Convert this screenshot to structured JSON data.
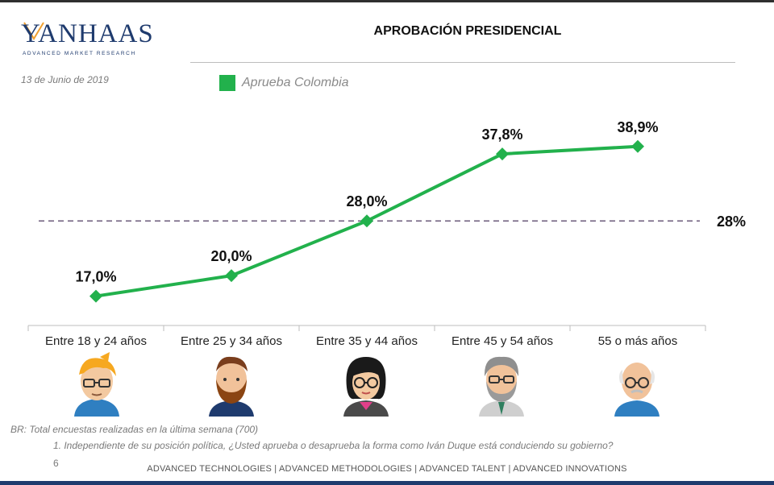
{
  "brand": {
    "name": "YANHAAS",
    "tagline": "ADVANCED MARKET RESEARCH",
    "colors": {
      "navy": "#1f3b6e",
      "orange": "#f0a030",
      "green": "#22b14c",
      "reference": "#6b5b7b"
    }
  },
  "date": "13 de Junio de 2019",
  "title": "APROBACIÓN PRESIDENCIAL",
  "legend": {
    "label": "Aprueba Colombia"
  },
  "chart_data": {
    "type": "line",
    "categories": [
      "Entre 18 y 24 años",
      "Entre 25 y 34 años",
      "Entre 35 y 44 años",
      "Entre 45 y 54 años",
      "55 o más años"
    ],
    "series": [
      {
        "name": "Aprueba Colombia",
        "values": [
          17.0,
          20.0,
          28.0,
          37.8,
          38.9
        ],
        "labels": [
          "17,0%",
          "20,0%",
          "28,0%",
          "37,8%",
          "38,9%"
        ]
      }
    ],
    "reference_line": {
      "value": 28,
      "label": "28%",
      "style": "dashed"
    },
    "ylim": [
      12,
      45
    ],
    "grid": false,
    "legend_position": "top"
  },
  "avatars": [
    "young-man-blond-glasses",
    "man-beard",
    "woman-glasses",
    "man-gray-hair-glasses",
    "older-man-glasses"
  ],
  "notes": {
    "base": "BR: Total encuestas realizadas en la última semana (700)",
    "question": "1. Independiente de su posición política, ¿Usted aprueba o desaprueba la forma como Iván Duque está conduciendo su gobierno?"
  },
  "page_number": "6",
  "footer": "ADVANCED TECHNOLOGIES  |  ADVANCED METHODOLOGIES  |  ADVANCED TALENT  |  ADVANCED INNOVATIONS"
}
